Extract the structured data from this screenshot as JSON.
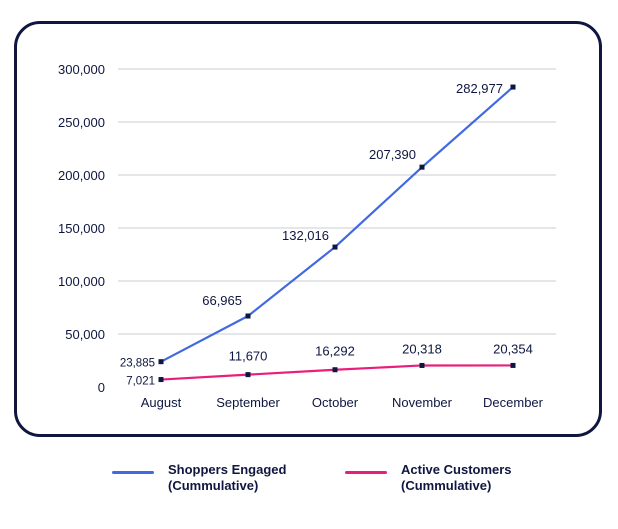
{
  "chart_data": {
    "type": "line",
    "categories": [
      "August",
      "September",
      "October",
      "November",
      "December"
    ],
    "ylim": [
      0,
      300000
    ],
    "y_ticks": [
      "0",
      "50,000",
      "100,000",
      "150,000",
      "200,000",
      "250,000",
      "300,000"
    ],
    "grid": true,
    "legend_position": "bottom",
    "series": [
      {
        "name_line1": "Shoppers Engaged",
        "name_line2": "(Cummulative)",
        "color": "#4169e1",
        "values": [
          23885,
          66965,
          132016,
          207390,
          282977
        ],
        "labels": [
          "23,885",
          "66,965",
          "132,016",
          "207,390",
          "282,977"
        ]
      },
      {
        "name_line1": "Active Customers",
        "name_line2": "(Cummulative)",
        "color": "#e91e7a",
        "values": [
          7021,
          11670,
          16292,
          20318,
          20354
        ],
        "labels": [
          "7,021",
          "11,670",
          "16,292",
          "20,318",
          "20,354"
        ]
      }
    ]
  }
}
